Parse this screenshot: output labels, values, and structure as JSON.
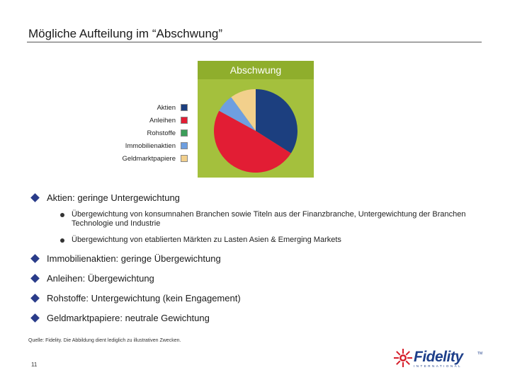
{
  "title": "Mögliche Aufteilung im “Abschwung”",
  "chart_data": {
    "type": "pie",
    "title": "Abschwung",
    "categories": [
      "Aktien",
      "Anleihen",
      "Rohstoffe",
      "Immobilienaktien",
      "Geldmarktpapiere"
    ],
    "values": [
      34,
      49,
      0,
      7,
      10
    ],
    "colors": [
      "#1c3f7f",
      "#e21d34",
      "#3c9e5a",
      "#6e9fe0",
      "#f2d08c"
    ]
  },
  "legend": [
    {
      "label": "Aktien",
      "color": "#1c3f7f"
    },
    {
      "label": "Anleihen",
      "color": "#e21d34"
    },
    {
      "label": "Rohstoffe",
      "color": "#3c9e5a"
    },
    {
      "label": "Immobilienaktien",
      "color": "#6e9fe0"
    },
    {
      "label": "Geldmarktpapiere",
      "color": "#f2d08c"
    }
  ],
  "bullets": {
    "b1": {
      "bold": "Aktien:",
      "text": " geringe Untergewichtung"
    },
    "b1_sub1": "Übergewichtung von konsumnahen Branchen sowie Titeln aus der Finanzbranche, Untergewichtung der Branchen Technologie und Industrie",
    "b1_sub2": "Übergewichtung von etablierten Märkten zu Lasten Asien & Emerging Markets",
    "b2": {
      "bold": "Immobilienaktien:",
      "text": " geringe Übergewichtung"
    },
    "b3": {
      "bold": "Anleihen:",
      "text": " Übergewichtung"
    },
    "b4": {
      "bold": "Rohstoffe:",
      "text": " Untergewichtung (kein Engagement)"
    },
    "b5": {
      "bold": "Geldmarktpapiere:",
      "text": " neutrale Gewichtung"
    }
  },
  "source": "Quelle: Fidelity. Die Abbildung dient lediglich zu illustrativen Zwecken.",
  "page_number": "11",
  "logo": {
    "word": "Fidelity",
    "tm": "TM",
    "sub": "INTERNATIONAL",
    "color": "#1e3f8a"
  }
}
